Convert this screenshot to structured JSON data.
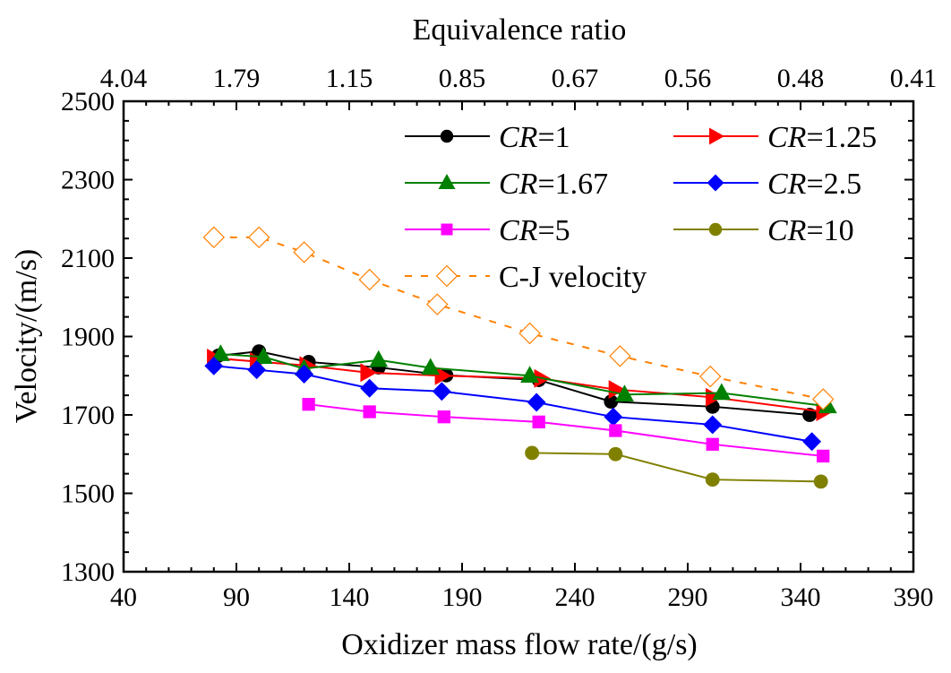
{
  "chart_data": {
    "type": "line",
    "title": "",
    "xlabel": "Oxidizer mass flow rate/(g/s)",
    "ylabel": "Velocity/(m/s)",
    "top_xlabel": "Equivalence ratio",
    "xlim": [
      40,
      390
    ],
    "ylim": [
      1300,
      2500
    ],
    "x_ticks": [
      40,
      90,
      140,
      190,
      240,
      290,
      340,
      390
    ],
    "x_tick_labels": [
      "40",
      "90",
      "140",
      "190",
      "240",
      "290",
      "340",
      "390"
    ],
    "y_ticks": [
      1300,
      1500,
      1700,
      1900,
      2100,
      2300,
      2500
    ],
    "y_tick_labels": [
      "1300",
      "1500",
      "1700",
      "1900",
      "2100",
      "2300",
      "2500"
    ],
    "top_x_tick_labels": [
      "4.04",
      "1.79",
      "1.15",
      "0.85",
      "0.67",
      "0.56",
      "0.48",
      "0.41"
    ],
    "x_minor_per_major": 4,
    "y_minor_per_major": 3,
    "grid": false,
    "legend_position": "top-right",
    "series": [
      {
        "name": "CR=1",
        "legend_prefix": "CR",
        "legend_suffix": "=1",
        "color": "#000000",
        "marker": "circle",
        "filled": true,
        "dash": false,
        "x": [
          82,
          100,
          122,
          153,
          183,
          224,
          256,
          301,
          344
        ],
        "y": [
          1851,
          1862,
          1835,
          1821,
          1801,
          1789,
          1734,
          1721,
          1700
        ]
      },
      {
        "name": "CR=1.25",
        "legend_prefix": "CR",
        "legend_suffix": "=1.25",
        "color": "#ff0000",
        "marker": "triangle-right",
        "filled": true,
        "dash": false,
        "x": [
          80,
          99,
          121,
          148,
          181,
          225,
          258,
          301,
          350
        ],
        "y": [
          1845,
          1836,
          1826,
          1808,
          1800,
          1793,
          1765,
          1745,
          1708
        ]
      },
      {
        "name": "CR=1.67",
        "legend_prefix": "CR",
        "legend_suffix": "=1.67",
        "color": "#008000",
        "marker": "triangle-up",
        "filled": true,
        "dash": false,
        "x": [
          83,
          102,
          120,
          153,
          176,
          220,
          262,
          305,
          352
        ],
        "y": [
          1855,
          1848,
          1818,
          1840,
          1820,
          1800,
          1752,
          1756,
          1722
        ]
      },
      {
        "name": "CR=2.5",
        "legend_prefix": "CR",
        "legend_suffix": "=2.5",
        "color": "#0000ff",
        "marker": "diamond",
        "filled": true,
        "dash": false,
        "x": [
          80,
          99,
          120,
          149,
          181,
          223,
          257,
          301,
          345
        ],
        "y": [
          1825,
          1815,
          1804,
          1768,
          1760,
          1732,
          1695,
          1675,
          1632
        ]
      },
      {
        "name": "CR=5",
        "legend_prefix": "CR",
        "legend_suffix": "=5",
        "color": "#ff00ff",
        "marker": "square",
        "filled": true,
        "dash": false,
        "x": [
          122,
          149,
          182,
          224,
          258,
          301,
          350
        ],
        "y": [
          1727,
          1708,
          1695,
          1682,
          1660,
          1625,
          1595
        ]
      },
      {
        "name": "CR=10",
        "legend_prefix": "CR",
        "legend_suffix": "=10",
        "color": "#808000",
        "marker": "circle",
        "filled": true,
        "dash": false,
        "x": [
          221,
          258,
          301,
          349
        ],
        "y": [
          1603,
          1600,
          1535,
          1530
        ]
      },
      {
        "name": "C-J velocity",
        "legend_prefix": "",
        "legend_suffix": "C-J velocity",
        "color": "#ff8000",
        "marker": "diamond",
        "filled": false,
        "dash": true,
        "x": [
          80,
          100,
          120,
          149,
          179,
          220,
          260,
          300,
          350
        ],
        "y": [
          2153,
          2153,
          2115,
          2045,
          1982,
          1908,
          1850,
          1798,
          1740
        ]
      }
    ]
  }
}
